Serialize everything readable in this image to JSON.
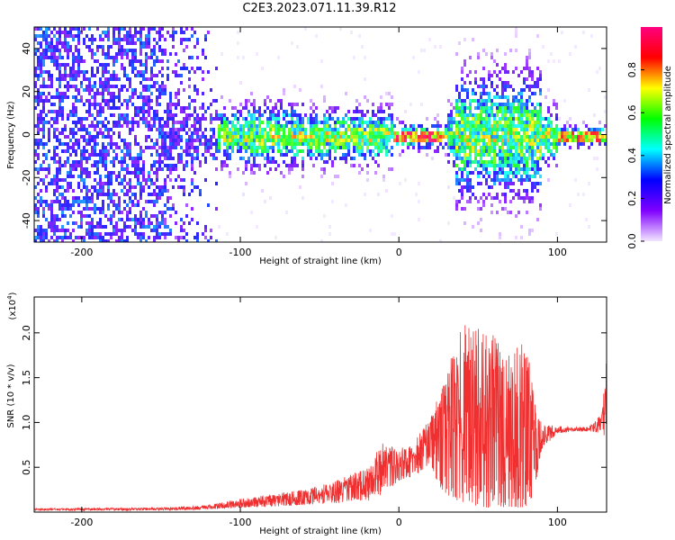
{
  "title": "C2E3.2023.071.11.39.R12",
  "chart_data": [
    {
      "type": "heatmap",
      "xlabel": "Height of straight line (km)",
      "ylabel": "Frequency (Hz)",
      "xlim": [
        -230,
        131
      ],
      "ylim": [
        -50,
        50
      ],
      "xticks": [
        -200,
        -100,
        0,
        100
      ],
      "yticks": [
        -40,
        -20,
        0,
        20,
        40
      ],
      "colorbar": {
        "label": "Normalized spectral amplitude",
        "range": [
          0,
          1
        ],
        "ticks": [
          "0.0",
          "0.2",
          "0.4",
          "0.6",
          "0.8"
        ],
        "colors": [
          "#f2e6ff",
          "#8000ff",
          "#0000ff",
          "#00ffff",
          "#00ff00",
          "#ffff00",
          "#ff0000",
          "#ff0080"
        ]
      }
    },
    {
      "type": "line",
      "xlabel": "Height of straight line (km)",
      "ylabel": "SNR (10 * v/v)",
      "yscale_label": "(x10",
      "yscale_exp": "4",
      "xlim": [
        -230,
        131
      ],
      "ylim": [
        0,
        2.4
      ],
      "xticks": [
        -200,
        -100,
        0,
        100
      ],
      "yticks": [
        "0.5",
        "1.0",
        "1.5",
        "2.0"
      ],
      "color": "#f03030",
      "envelope": {
        "x": [
          -230,
          -150,
          -120,
          -100,
          -80,
          -60,
          -40,
          -20,
          -10,
          0,
          10,
          20,
          25,
          30,
          40,
          50,
          60,
          70,
          80,
          85,
          90,
          100,
          110,
          120,
          128,
          131
        ],
        "low": [
          0.02,
          0.02,
          0.03,
          0.05,
          0.06,
          0.08,
          0.1,
          0.12,
          0.2,
          0.35,
          0.4,
          0.55,
          0.3,
          0.2,
          0.1,
          0.05,
          0.05,
          0.05,
          0.05,
          0.2,
          0.7,
          0.88,
          0.9,
          0.9,
          0.88,
          0.8
        ],
        "high": [
          0.04,
          0.05,
          0.08,
          0.15,
          0.2,
          0.25,
          0.35,
          0.5,
          0.8,
          0.7,
          0.8,
          1.05,
          1.3,
          1.6,
          2.1,
          2.05,
          2.0,
          1.85,
          1.9,
          1.4,
          1.0,
          0.96,
          0.95,
          0.95,
          1.1,
          1.7
        ]
      }
    }
  ]
}
